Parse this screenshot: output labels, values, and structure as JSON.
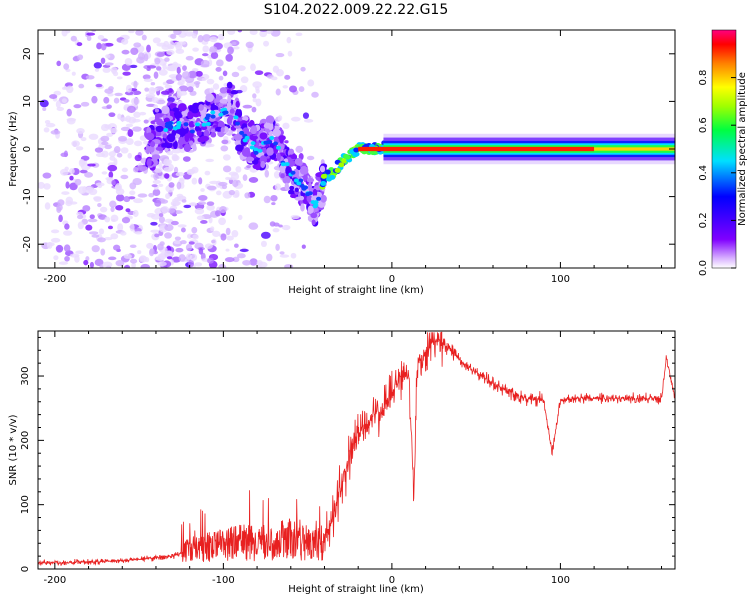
{
  "title": "S104.2022.009.22.22.G15",
  "chart_data": [
    {
      "type": "heatmap",
      "xlabel": "Height of straight line (km)",
      "ylabel": "Frequency (Hz)",
      "xlim": [
        -210,
        168
      ],
      "ylim": [
        -25,
        25
      ],
      "xticks": [
        -200,
        -100,
        0,
        100
      ],
      "yticks": [
        -20,
        -10,
        0,
        10,
        20
      ],
      "colorbar": {
        "label": "Normalized spectral amplitude",
        "ticks": [
          "0.0",
          "0.2",
          "0.4",
          "0.6",
          "0.8"
        ],
        "range": [
          0,
          1
        ]
      },
      "ridge": [
        {
          "x": -140,
          "y": 4
        },
        {
          "x": -130,
          "y": 5
        },
        {
          "x": -120,
          "y": 4
        },
        {
          "x": -110,
          "y": 6
        },
        {
          "x": -100,
          "y": 8
        },
        {
          "x": -95,
          "y": 10
        },
        {
          "x": -90,
          "y": 3
        },
        {
          "x": -80,
          "y": 0
        },
        {
          "x": -70,
          "y": 3
        },
        {
          "x": -65,
          "y": -2
        },
        {
          "x": -58,
          "y": -6
        },
        {
          "x": -50,
          "y": -9
        },
        {
          "x": -45,
          "y": -12
        },
        {
          "x": -40,
          "y": -6
        },
        {
          "x": -35,
          "y": -5
        },
        {
          "x": -28,
          "y": -2
        },
        {
          "x": -20,
          "y": 0
        },
        {
          "x": -10,
          "y": 0
        },
        {
          "x": 0,
          "y": 1
        },
        {
          "x": 10,
          "y": 0
        },
        {
          "x": 40,
          "y": 0
        },
        {
          "x": 80,
          "y": 0
        },
        {
          "x": 120,
          "y": 0
        },
        {
          "x": 168,
          "y": 0
        }
      ]
    },
    {
      "type": "line",
      "xlabel": "Height of straight line (km)",
      "ylabel": "SNR (10 * v/v)",
      "xlim": [
        -210,
        168
      ],
      "ylim": [
        0,
        370
      ],
      "xticks": [
        -200,
        -100,
        0,
        100
      ],
      "yticks": [
        0,
        100,
        200,
        300
      ],
      "color": "#e82020",
      "series": [
        {
          "x": [
            -210,
            -190,
            -170,
            -150,
            -130,
            -120,
            -110,
            -100,
            -90,
            -80,
            -70,
            -60,
            -50,
            -45,
            -40,
            -35,
            -30,
            -25,
            -20,
            -15,
            -10,
            -5,
            0,
            5,
            10,
            13,
            15,
            20,
            25,
            30,
            35,
            40,
            50,
            60,
            70,
            80,
            90,
            95,
            100,
            110,
            120,
            130,
            140,
            150,
            160,
            163,
            168
          ],
          "y": [
            10,
            10,
            12,
            15,
            20,
            30,
            35,
            40,
            45,
            40,
            45,
            50,
            40,
            40,
            45,
            80,
            130,
            170,
            210,
            225,
            240,
            250,
            275,
            295,
            300,
            110,
            320,
            340,
            355,
            350,
            340,
            325,
            305,
            290,
            275,
            265,
            262,
            180,
            262,
            265,
            265,
            265,
            265,
            265,
            265,
            330,
            265
          ]
        }
      ]
    }
  ]
}
